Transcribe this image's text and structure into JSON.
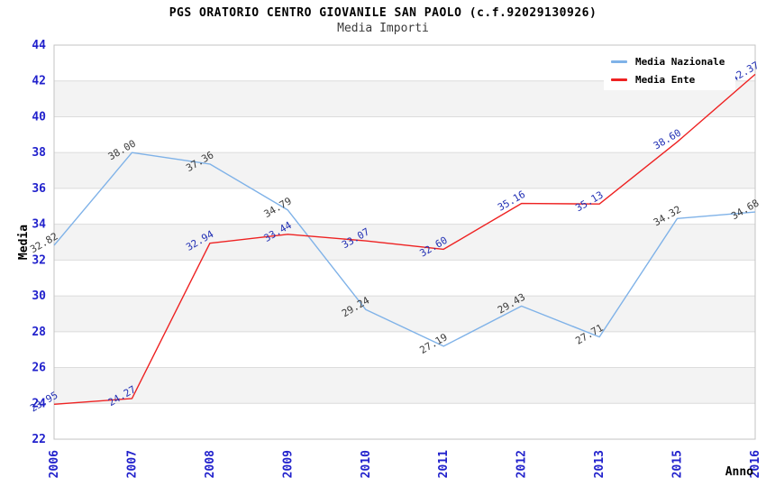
{
  "chart_data": {
    "type": "line",
    "title": "PGS ORATORIO CENTRO GIOVANILE SAN PAOLO (c.f.92029130926)",
    "subtitle": "Media Importi",
    "xlabel": "Anno",
    "ylabel": "Media",
    "categories": [
      "2006",
      "2007",
      "2008",
      "2009",
      "2010",
      "2011",
      "2012",
      "2013",
      "2015",
      "2016"
    ],
    "series": [
      {
        "name": "Media Nazionale",
        "color": "#7fb2e8",
        "label_color": "#3c3c3c",
        "values": [
          32.82,
          38.0,
          37.36,
          34.79,
          29.24,
          27.19,
          29.43,
          27.71,
          34.32,
          34.68
        ]
      },
      {
        "name": "Media Ente",
        "color": "#ee2222",
        "label_color": "#2230b4",
        "values": [
          23.95,
          24.27,
          32.94,
          33.44,
          33.07,
          32.6,
          35.16,
          35.13,
          38.6,
          42.37
        ]
      }
    ],
    "ylim": [
      22,
      44
    ],
    "ytick_step": 2,
    "yticks": [
      22,
      24,
      26,
      28,
      30,
      32,
      34,
      36,
      38,
      40,
      42,
      44
    ],
    "grid": "horizontal-bands",
    "legend_position": "top-right",
    "colors": {
      "axis_label": "#2121cc",
      "band_fill": "#f3f3f3",
      "grid_line": "#dcdcdc",
      "plot_border": "#c3c3c3",
      "title_text": "#000000",
      "subtitle_text": "#3a3a3a"
    }
  }
}
